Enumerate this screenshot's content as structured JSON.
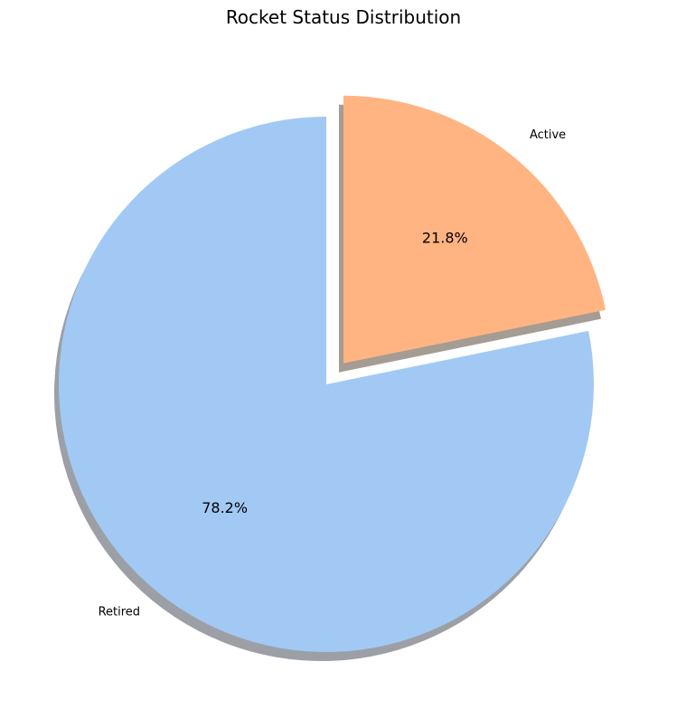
{
  "chart_data": {
    "type": "pie",
    "title": "Rocket Status Distribution",
    "slices": [
      {
        "label": "Retired",
        "value": 78.2,
        "pct_label": "78.2%",
        "color": "#a1c9f4",
        "exploded": false
      },
      {
        "label": "Active",
        "value": 21.8,
        "pct_label": "21.8%",
        "color": "#ffb482",
        "exploded": true
      }
    ],
    "start_angle_deg": 90,
    "counterclockwise": true,
    "shadow": true,
    "shadow_colors": [
      "#9ca0a6",
      "#a59c93"
    ]
  }
}
